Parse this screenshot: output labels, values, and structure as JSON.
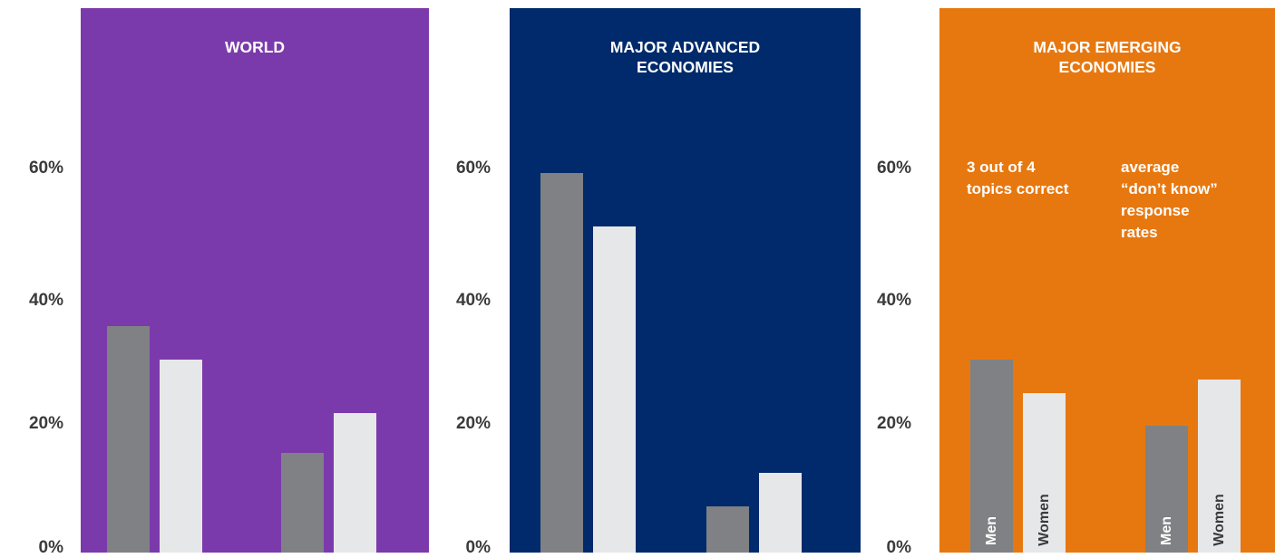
{
  "colors": {
    "world": "#7b3aab",
    "advanced": "#002a6b",
    "emerging": "#e77810",
    "men": "#808184",
    "women": "#e6e7e8"
  },
  "chart_data": [
    {
      "type": "bar",
      "title": "WORLD",
      "ylim": [
        0,
        80
      ],
      "yticks": [
        "0%",
        "20%",
        "40%",
        "60%"
      ],
      "categories": [
        "3 out of 4 topics correct",
        "average “don’t know” response rates"
      ],
      "series": [
        {
          "name": "Men",
          "values": [
            34,
            15
          ]
        },
        {
          "name": "Women",
          "values": [
            29,
            21
          ]
        }
      ]
    },
    {
      "type": "bar",
      "title": "MAJOR ADVANCED ECONOMIES",
      "ylim": [
        0,
        80
      ],
      "yticks": [
        "0%",
        "20%",
        "40%",
        "60%"
      ],
      "categories": [
        "3 out of 4 topics correct",
        "average “don’t know” response rates"
      ],
      "series": [
        {
          "name": "Men",
          "values": [
            57,
            7
          ]
        },
        {
          "name": "Women",
          "values": [
            49,
            12
          ]
        }
      ]
    },
    {
      "type": "bar",
      "title": "MAJOR EMERGING ECONOMIES",
      "ylim": [
        0,
        80
      ],
      "yticks": [
        "0%",
        "20%",
        "40%",
        "60%"
      ],
      "categories": [
        "3 out of 4 topics correct",
        "average “don’t know” response rates"
      ],
      "annotations": [
        "3 out of 4\ntopics correct",
        "average\n“don’t know”\nresponse\nrates"
      ],
      "series": [
        {
          "name": "Men",
          "values": [
            29,
            19
          ]
        },
        {
          "name": "Women",
          "values": [
            24,
            26
          ]
        }
      ]
    }
  ]
}
